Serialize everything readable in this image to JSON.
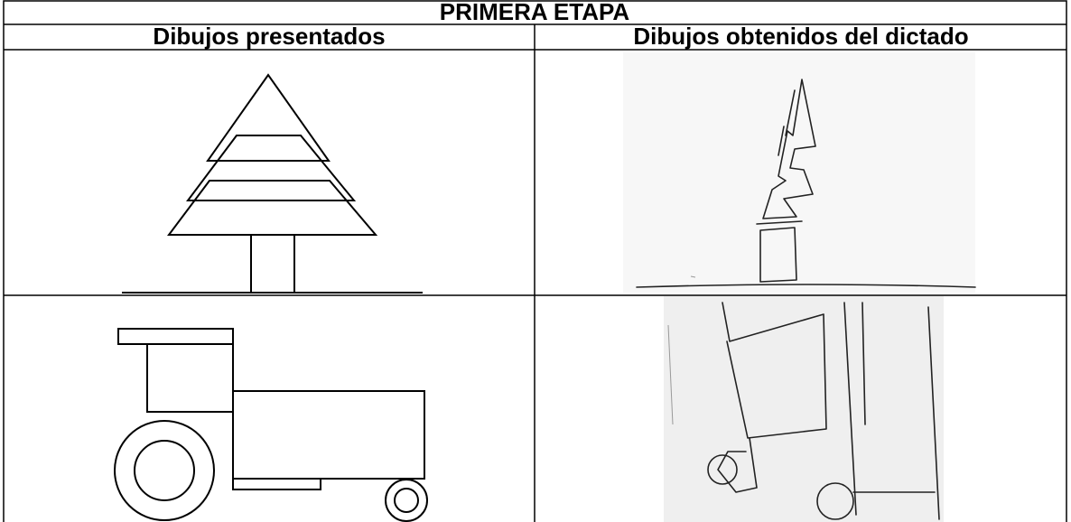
{
  "table": {
    "title": "PRIMERA ETAPA",
    "columns": [
      "Dibujos presentados",
      "Dibujos obtenidos del dictado"
    ]
  }
}
